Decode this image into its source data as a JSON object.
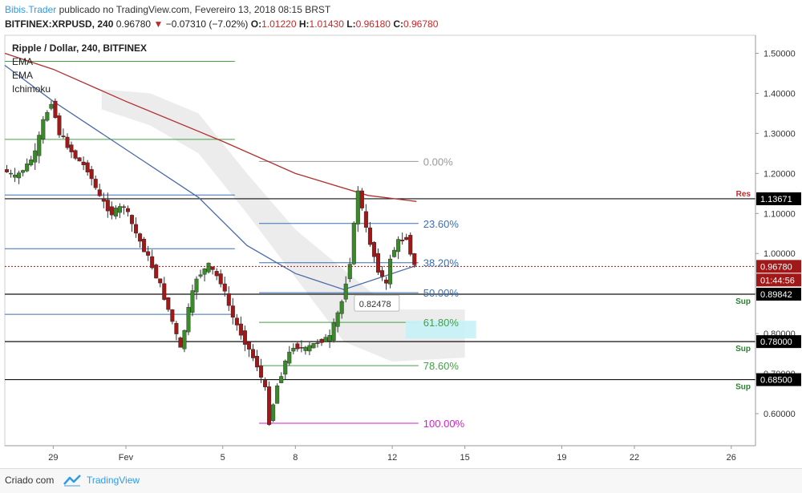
{
  "header": {
    "author": "Bibis.Trader",
    "published_text": "publicado no TradingView.com, Fevereiro 13, 2018 08:15 BRST",
    "symbol": "BITFINEX:XRPUSD, 240",
    "last_price": "0.96780",
    "change": "−0.07310 (−7.02%)",
    "open_label": "O:",
    "open": "1.01220",
    "high_label": "H:",
    "high": "1.01430",
    "low_label": "L:",
    "low": "0.96180",
    "close_label": "C:",
    "close": "0.96780"
  },
  "legend": {
    "title": "Ripple / Dollar, 240, BITFINEX",
    "ind1": "EMA",
    "ind2": "EMA",
    "ind3": "Ichimoku"
  },
  "footer": {
    "created_with": "Criado com",
    "brand": "TradingView"
  },
  "colors": {
    "up": "#3a8a2a",
    "down": "#a01818",
    "ema_slow": "#b03030",
    "ema_fast": "#4a6aa8",
    "support_label": "#2e7d32",
    "resistance_label": "#c62828",
    "fib_blue": "#3b6fb6",
    "fib_green": "#43a047",
    "fib_gray": "#999999",
    "fib_magenta": "#d81bd8"
  },
  "chart_data": {
    "type": "candlestick",
    "title": "Ripple / Dollar, 240, BITFINEX",
    "y_axis": {
      "range": [
        0.52,
        1.545
      ],
      "ticks": [
        "0.60000",
        "0.70000",
        "0.80000",
        "0.90000",
        "1.00000",
        "1.10000",
        "1.20000",
        "1.30000",
        "1.40000",
        "1.50000"
      ]
    },
    "x_axis": {
      "range": [
        "2018-01-27",
        "2018-02-27"
      ],
      "ticks": [
        {
          "date": "2018-01-29",
          "label": "29"
        },
        {
          "date": "2018-02-01",
          "label": "Fev"
        },
        {
          "date": "2018-02-05",
          "label": "5"
        },
        {
          "date": "2018-02-08",
          "label": "8"
        },
        {
          "date": "2018-02-12",
          "label": "12"
        },
        {
          "date": "2018-02-15",
          "label": "15"
        },
        {
          "date": "2018-02-19",
          "label": "19"
        },
        {
          "date": "2018-02-22",
          "label": "22"
        },
        {
          "date": "2018-02-26",
          "label": "26"
        }
      ]
    },
    "price_path": [
      [
        "2018-01-27",
        1.21
      ],
      [
        "2018-01-27T12:00",
        1.19
      ],
      [
        "2018-01-28",
        1.22
      ],
      [
        "2018-01-28T08:00",
        1.25
      ],
      [
        "2018-01-28T16:00",
        1.33
      ],
      [
        "2018-01-29",
        1.38
      ],
      [
        "2018-01-29T08:00",
        1.3
      ],
      [
        "2018-01-29T16:00",
        1.27
      ],
      [
        "2018-01-30",
        1.24
      ],
      [
        "2018-01-30T12:00",
        1.21
      ],
      [
        "2018-01-31",
        1.14
      ],
      [
        "2018-01-31T12:00",
        1.1
      ],
      [
        "2018-02-01",
        1.12
      ],
      [
        "2018-02-01T12:00",
        1.05
      ],
      [
        "2018-02-02",
        0.99
      ],
      [
        "2018-02-02T12:00",
        0.92
      ],
      [
        "2018-02-03",
        0.83
      ],
      [
        "2018-02-03T08:00",
        0.76
      ],
      [
        "2018-02-03T16:00",
        0.86
      ],
      [
        "2018-02-04",
        0.94
      ],
      [
        "2018-02-04T12:00",
        0.97
      ],
      [
        "2018-02-05",
        0.93
      ],
      [
        "2018-02-05T12:00",
        0.84
      ],
      [
        "2018-02-06",
        0.78
      ],
      [
        "2018-02-06T12:00",
        0.72
      ],
      [
        "2018-02-06T20:00",
        0.66
      ],
      [
        "2018-02-07",
        0.58
      ],
      [
        "2018-02-07T08:00",
        0.67
      ],
      [
        "2018-02-07T16:00",
        0.73
      ],
      [
        "2018-02-08",
        0.77
      ],
      [
        "2018-02-08T12:00",
        0.76
      ],
      [
        "2018-02-09",
        0.78
      ],
      [
        "2018-02-09T12:00",
        0.79
      ],
      [
        "2018-02-10",
        0.88
      ],
      [
        "2018-02-10T08:00",
        0.98
      ],
      [
        "2018-02-10T16:00",
        1.16
      ],
      [
        "2018-02-11",
        1.06
      ],
      [
        "2018-02-11T12:00",
        0.96
      ],
      [
        "2018-02-11T20:00",
        0.92
      ],
      [
        "2018-02-12",
        0.99
      ],
      [
        "2018-02-12T08:00",
        1.03
      ],
      [
        "2018-02-12T16:00",
        1.04
      ],
      [
        "2018-02-13",
        0.9678
      ]
    ],
    "series": [
      {
        "name": "EMA",
        "points": [
          [
            "2018-01-27",
            1.5
          ],
          [
            "2018-01-29",
            1.46
          ],
          [
            "2018-02-01",
            1.38
          ],
          [
            "2018-02-05",
            1.28
          ],
          [
            "2018-02-08",
            1.2
          ],
          [
            "2018-02-11",
            1.145
          ],
          [
            "2018-02-13",
            1.13
          ]
        ]
      },
      {
        "name": "EMA",
        "points": [
          [
            "2018-01-27",
            1.47
          ],
          [
            "2018-01-29",
            1.38
          ],
          [
            "2018-02-01",
            1.26
          ],
          [
            "2018-02-04",
            1.14
          ],
          [
            "2018-02-06",
            1.02
          ],
          [
            "2018-02-08",
            0.95
          ],
          [
            "2018-02-10",
            0.91
          ],
          [
            "2018-02-12",
            0.95
          ],
          [
            "2018-02-13",
            0.97
          ]
        ]
      }
    ],
    "ichimoku_cloud": {
      "upper": [
        [
          "2018-01-31",
          1.41
        ],
        [
          "2018-02-02",
          1.4
        ],
        [
          "2018-02-04",
          1.35
        ],
        [
          "2018-02-06",
          1.2
        ],
        [
          "2018-02-08",
          1.06
        ],
        [
          "2018-02-10",
          0.96
        ],
        [
          "2018-02-12",
          0.86
        ],
        [
          "2018-02-15",
          0.86
        ]
      ],
      "lower": [
        [
          "2018-01-31",
          1.36
        ],
        [
          "2018-02-02",
          1.32
        ],
        [
          "2018-02-04",
          1.25
        ],
        [
          "2018-02-06",
          1.1
        ],
        [
          "2018-02-08",
          0.94
        ],
        [
          "2018-02-10",
          0.78
        ],
        [
          "2018-02-12",
          0.73
        ],
        [
          "2018-02-15",
          0.74
        ]
      ]
    },
    "horizontal_lines": [
      {
        "kind": "green",
        "y": 1.48,
        "x0": "2018-01-27",
        "x1": "2018-02-05T12:00"
      },
      {
        "kind": "green",
        "y": 1.285,
        "x0": "2018-01-27",
        "x1": "2018-02-05T12:00"
      },
      {
        "kind": "blue",
        "y": 1.146,
        "x0": "2018-01-27",
        "x1": "2018-02-05T12:00"
      },
      {
        "kind": "blue",
        "y": 1.012,
        "x0": "2018-01-27",
        "x1": "2018-02-05T12:00"
      },
      {
        "kind": "blue",
        "y": 0.848,
        "x0": "2018-01-27",
        "x1": "2018-02-05T12:00"
      }
    ],
    "sr_levels": [
      {
        "kind": "res",
        "label": "Res",
        "value": "1.13671",
        "y": 1.13671
      },
      {
        "kind": "sup",
        "label": "Sup",
        "value": "0.89842",
        "y": 0.89842
      },
      {
        "kind": "sup",
        "label": "Sup",
        "value": "0.78000",
        "y": 0.78
      },
      {
        "kind": "sup",
        "label": "Sup",
        "value": "0.68500",
        "y": 0.685
      }
    ],
    "fibonacci": {
      "x0": "2018-02-06T12:00",
      "x1": "2018-02-13T02:00",
      "levels": [
        {
          "label": "0.00%",
          "y": 1.23,
          "kind": "gray"
        },
        {
          "label": "23.60%",
          "y": 1.075,
          "kind": "blue"
        },
        {
          "label": "38.20%",
          "y": 0.977,
          "kind": "blue"
        },
        {
          "label": "50.00%",
          "y": 0.902,
          "kind": "blue"
        },
        {
          "label": "61.80%",
          "y": 0.828,
          "kind": "green"
        },
        {
          "label": "78.60%",
          "y": 0.72,
          "kind": "green"
        },
        {
          "label": "100.00%",
          "y": 0.576,
          "kind": "magenta"
        }
      ]
    },
    "fib_tooltip": "0.82478",
    "current_price": {
      "value": "0.96780",
      "y": 0.9678
    },
    "countdown": "01:44:56"
  }
}
